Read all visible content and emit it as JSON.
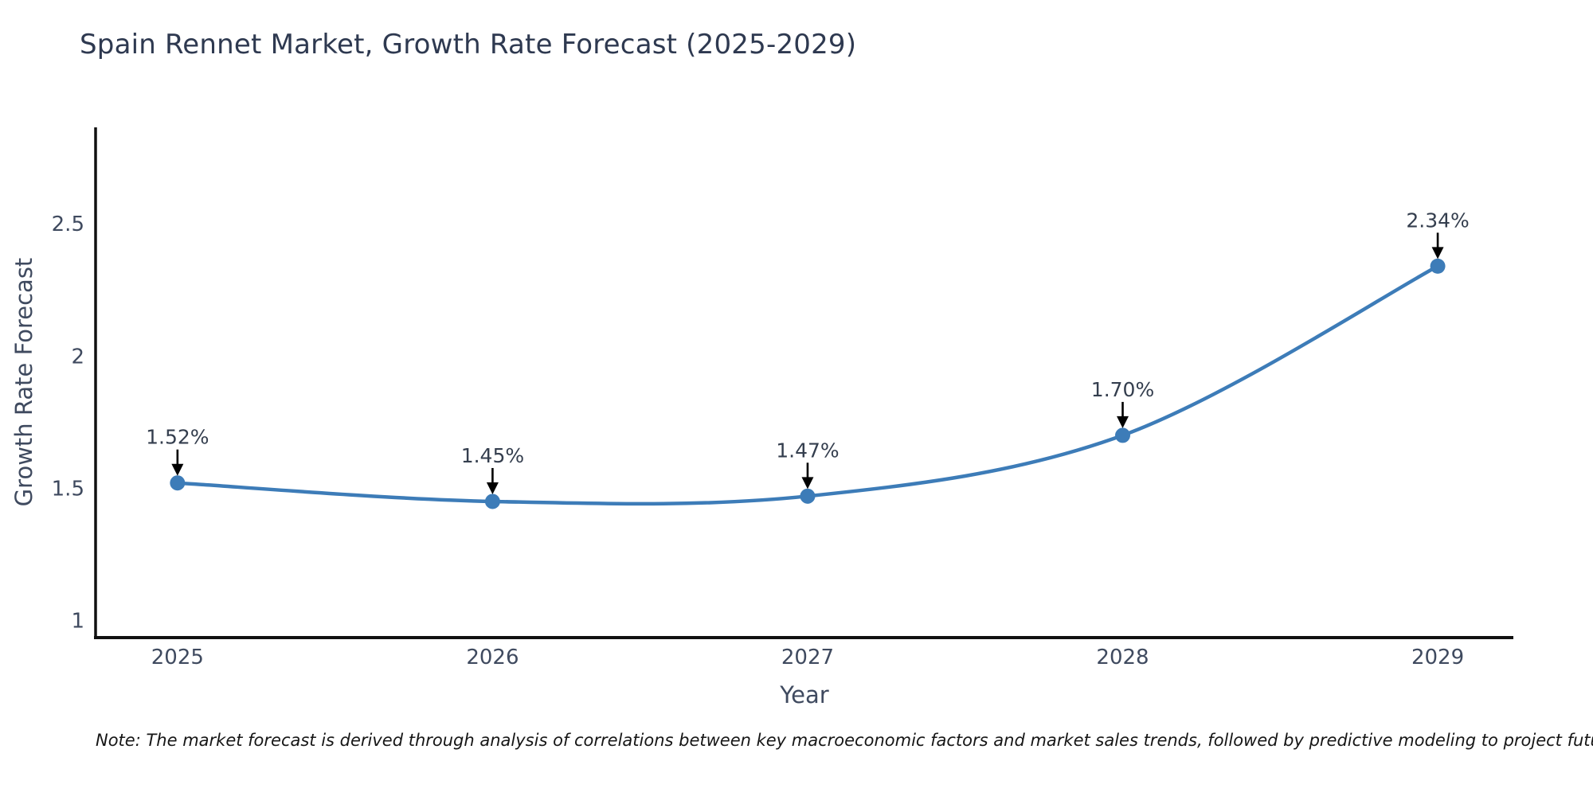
{
  "chart_data": {
    "type": "line",
    "title": "Spain Rennet Market, Growth Rate Forecast (2025-2029)",
    "xlabel": "Year",
    "ylabel": "Growth Rate Forecast",
    "x": [
      2025,
      2026,
      2027,
      2028,
      2029
    ],
    "series": [
      {
        "name": "Growth Rate Forecast",
        "values": [
          1.52,
          1.45,
          1.47,
          1.7,
          2.34
        ],
        "point_labels": [
          "1.52%",
          "1.45%",
          "1.47%",
          "1.70%",
          "2.34%"
        ]
      }
    ],
    "x_tick_labels": [
      "2025",
      "2026",
      "2027",
      "2028",
      "2029"
    ],
    "y_ticks": [
      1,
      1.5,
      2,
      2.5
    ],
    "y_tick_labels": [
      "1",
      "1.5",
      "2",
      "2.5"
    ],
    "xlim": [
      2024.74,
      2029.24
    ],
    "ylim": [
      0.935,
      2.865
    ],
    "grid": false,
    "legend": false,
    "line_shape": "spline",
    "colors": {
      "line": "#3d7cb8",
      "marker": "#3d7cb8",
      "spine": "#111111",
      "tick_text": "#3f4a5f",
      "title_text": "#2e3950",
      "annotation_text": "#343e4e",
      "arrow": "#000000",
      "background": "#ffffff"
    }
  },
  "note": {
    "text": "Note: The market forecast is derived through analysis of correlations between key macroeconomic factors and market sales trends, followed by predictive modeling to project future sales"
  }
}
